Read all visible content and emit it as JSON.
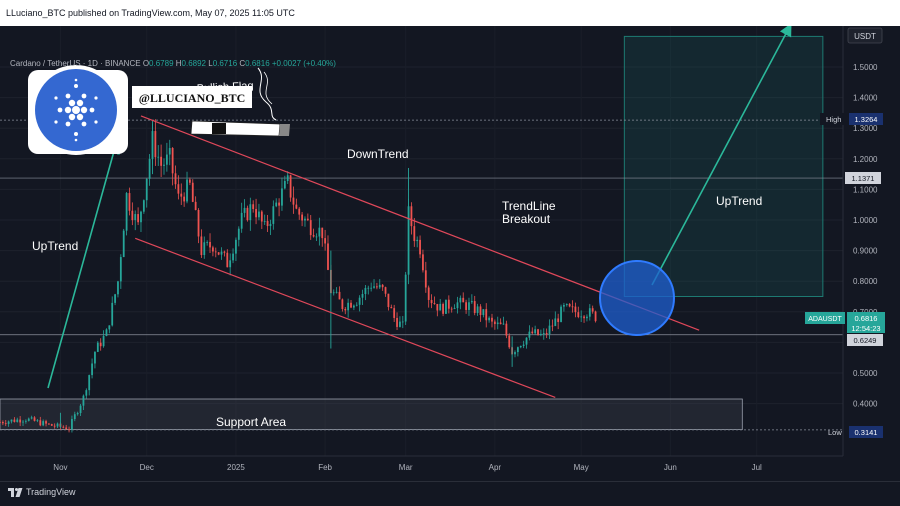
{
  "header": {
    "published_text": "LLuciano_BTC published on TradingView.com, May 07, 2025 11:05 UTC"
  },
  "symbol_info": {
    "name": "Cardano / TetherUS · 1D · BINANCE",
    "open_label": "O",
    "open": "0.6789",
    "high_label": "H",
    "high": "0.6892",
    "low_label": "L",
    "low": "0.6716",
    "close_label": "C",
    "close": "0.6816",
    "change": "+0.0027 (+0.40%)"
  },
  "annotations": {
    "handle": "@LLUCIANO_BTC",
    "bullish_flag": "Bullish Flag",
    "uptrend_left": "UpTrend",
    "downtrend": "DownTrend",
    "trendline_breakout_1": "TrendLine",
    "trendline_breakout_2": "Breakout",
    "uptrend_right": "UpTrend",
    "support_area": "Support Area"
  },
  "price_scale": {
    "currency": "USDT",
    "high_label": "High",
    "high_value": "1.3264",
    "level_value": "1.1371",
    "pair_label": "ADAUSDT",
    "pair_price": "0.6816",
    "countdown": "12:54:23",
    "support_value": "0.6249",
    "low_label": "Low",
    "low_value": "0.3141"
  },
  "footer": {
    "brand": "TradingView"
  },
  "colors": {
    "background": "#131722",
    "up": "#26a69a",
    "down": "#ef5350",
    "channel": "#e0485a",
    "arrow": "#2bb89a",
    "circle_fill": "#1f5fd0",
    "target_box": "#1d7a72"
  },
  "chart_data": {
    "type": "candlestick",
    "title": "Cardano / TetherUS · 1D · BINANCE",
    "y_ticks": [
      0.4,
      0.5,
      0.6,
      0.7,
      0.8,
      0.9,
      1.0,
      1.1,
      1.2,
      1.3,
      1.4,
      1.5
    ],
    "y_tick_labels": [
      "0.4000",
      "0.5000",
      "0.6000",
      "0.7000",
      "0.8000",
      "0.9000",
      "1.0000",
      "1.1000",
      "1.2000",
      "1.3000",
      "1.4000",
      "1.5000"
    ],
    "x_tick_labels": [
      {
        "label": "Nov",
        "date": "2024-11-01"
      },
      {
        "label": "Dec",
        "date": "2024-12-01"
      },
      {
        "label": "2025",
        "date": "2025-01-01"
      },
      {
        "label": "Feb",
        "date": "2025-02-01"
      },
      {
        "label": "Mar",
        "date": "2025-03-01"
      },
      {
        "label": "Apr",
        "date": "2025-04-01"
      },
      {
        "label": "May",
        "date": "2025-05-01"
      },
      {
        "label": "Jun",
        "date": "2025-06-01"
      },
      {
        "label": "Jul",
        "date": "2025-07-01"
      }
    ],
    "ylim": [
      0.26,
      1.6
    ],
    "xlim": [
      "2024-10-11",
      "2025-07-31"
    ],
    "grid": true,
    "price_path": [
      {
        "date": "2024-10-11",
        "price": 0.34
      },
      {
        "date": "2024-10-20",
        "price": 0.35
      },
      {
        "date": "2024-10-28",
        "price": 0.33
      },
      {
        "date": "2024-11-04",
        "price": 0.32
      },
      {
        "date": "2024-11-09",
        "price": 0.42
      },
      {
        "date": "2024-11-13",
        "price": 0.57
      },
      {
        "date": "2024-11-17",
        "price": 0.63
      },
      {
        "date": "2024-11-21",
        "price": 0.8
      },
      {
        "date": "2024-11-24",
        "price": 1.08
      },
      {
        "date": "2024-11-28",
        "price": 0.98
      },
      {
        "date": "2024-12-03",
        "price": 1.26
      },
      {
        "date": "2024-12-06",
        "price": 1.18
      },
      {
        "date": "2024-12-09",
        "price": 1.2
      },
      {
        "date": "2024-12-12",
        "price": 1.07
      },
      {
        "date": "2024-12-16",
        "price": 1.11
      },
      {
        "date": "2024-12-20",
        "price": 0.9
      },
      {
        "date": "2024-12-24",
        "price": 0.92
      },
      {
        "date": "2024-12-29",
        "price": 0.86
      },
      {
        "date": "2025-01-03",
        "price": 1.0
      },
      {
        "date": "2025-01-07",
        "price": 1.05
      },
      {
        "date": "2025-01-11",
        "price": 0.97
      },
      {
        "date": "2025-01-16",
        "price": 1.07
      },
      {
        "date": "2025-01-19",
        "price": 1.12
      },
      {
        "date": "2025-01-22",
        "price": 1.03
      },
      {
        "date": "2025-01-27",
        "price": 0.98
      },
      {
        "date": "2025-01-31",
        "price": 0.96
      },
      {
        "date": "2025-02-03",
        "price": 0.77
      },
      {
        "date": "2025-02-07",
        "price": 0.72
      },
      {
        "date": "2025-02-12",
        "price": 0.74
      },
      {
        "date": "2025-02-17",
        "price": 0.79
      },
      {
        "date": "2025-02-21",
        "price": 0.77
      },
      {
        "date": "2025-02-25",
        "price": 0.68
      },
      {
        "date": "2025-02-28",
        "price": 0.65
      },
      {
        "date": "2025-03-02",
        "price": 1.02
      },
      {
        "date": "2025-03-04",
        "price": 0.95
      },
      {
        "date": "2025-03-06",
        "price": 0.91
      },
      {
        "date": "2025-03-09",
        "price": 0.75
      },
      {
        "date": "2025-03-13",
        "price": 0.71
      },
      {
        "date": "2025-03-18",
        "price": 0.73
      },
      {
        "date": "2025-03-23",
        "price": 0.72
      },
      {
        "date": "2025-03-27",
        "price": 0.7
      },
      {
        "date": "2025-03-31",
        "price": 0.66
      },
      {
        "date": "2025-04-04",
        "price": 0.65
      },
      {
        "date": "2025-04-07",
        "price": 0.57
      },
      {
        "date": "2025-04-10",
        "price": 0.6
      },
      {
        "date": "2025-04-14",
        "price": 0.63
      },
      {
        "date": "2025-04-18",
        "price": 0.62
      },
      {
        "date": "2025-04-22",
        "price": 0.67
      },
      {
        "date": "2025-04-25",
        "price": 0.71
      },
      {
        "date": "2025-04-29",
        "price": 0.7
      },
      {
        "date": "2025-05-03",
        "price": 0.7
      },
      {
        "date": "2025-05-07",
        "price": 0.68
      }
    ],
    "channel_lines": [
      {
        "name": "upper",
        "from": {
          "date": "2024-11-29",
          "price": 1.34
        },
        "to": {
          "date": "2025-06-11",
          "price": 0.64
        }
      },
      {
        "name": "lower",
        "from": {
          "date": "2024-11-27",
          "price": 0.94
        },
        "to": {
          "date": "2025-04-22",
          "price": 0.42
        }
      }
    ],
    "horizontal_levels": [
      1.3264,
      1.1371,
      0.6249,
      0.3141
    ],
    "support_zone": {
      "x0": "2024-10-11",
      "x1": "2025-06-26",
      "y0": 0.315,
      "y1": 0.415
    },
    "target_zone": {
      "x0": "2025-05-16",
      "x1": "2025-07-24",
      "y0": 0.75,
      "y1": 1.6
    }
  }
}
